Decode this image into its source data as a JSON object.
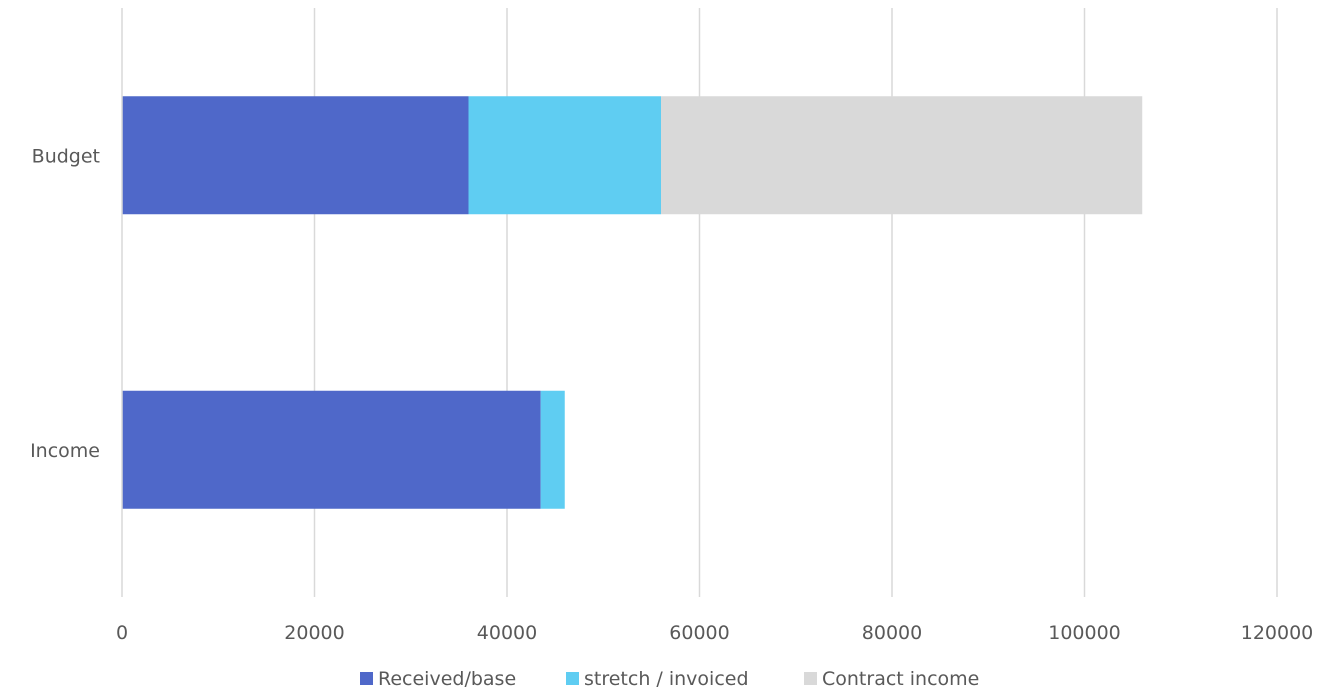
{
  "chart_data": {
    "type": "bar",
    "orientation": "horizontal",
    "stacked": true,
    "title": "",
    "xlabel": "",
    "ylabel": "",
    "xlim": [
      0,
      120000
    ],
    "x_ticks": [
      "0",
      "20000",
      "40000",
      "60000",
      "80000",
      "100000",
      "120000"
    ],
    "grid": "vertical",
    "legend_position": "bottom",
    "categories": [
      "Budget",
      "Income"
    ],
    "series": [
      {
        "name": "Received/base",
        "values": [
          36000,
          43500
        ],
        "color": "#4F68C9"
      },
      {
        "name": "stretch / invoiced",
        "values": [
          20000,
          2500
        ],
        "color": "#5FCDF2"
      },
      {
        "name": "Contract income",
        "values": [
          50000,
          0
        ],
        "color": "#D9D9D9"
      }
    ]
  }
}
